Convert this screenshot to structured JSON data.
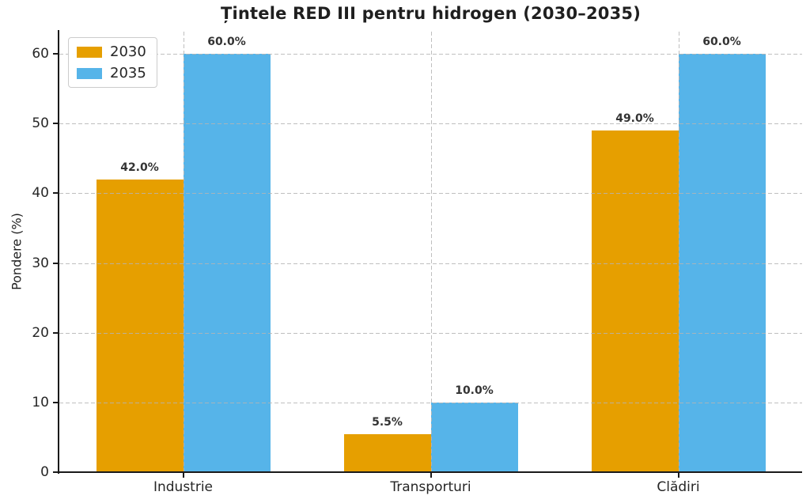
{
  "chart_data": {
    "type": "bar",
    "title": "Țintele RED III pentru hidrogen (2030–2035)",
    "ylabel": "Pondere (%)",
    "xlabel": "",
    "categories": [
      "Industrie",
      "Transporturi",
      "Clădiri"
    ],
    "series": [
      {
        "name": "2030",
        "color": "#E69F00",
        "values": [
          42.0,
          5.5,
          49.0
        ],
        "labels": [
          "42.0%",
          "5.5%",
          "49.0%"
        ]
      },
      {
        "name": "2035",
        "color": "#56B4E9",
        "values": [
          60.0,
          10.0,
          60.0
        ],
        "labels": [
          "60.0%",
          "10.0%",
          "60.0%"
        ]
      }
    ],
    "yticks": [
      0,
      10,
      20,
      30,
      40,
      50,
      60
    ],
    "ylim": [
      0,
      63.2
    ],
    "grid": "dashed, horizontal at yticks and vertical at category centers, drawn over bars",
    "legend_position": "upper left",
    "spines": "left and bottom only"
  }
}
